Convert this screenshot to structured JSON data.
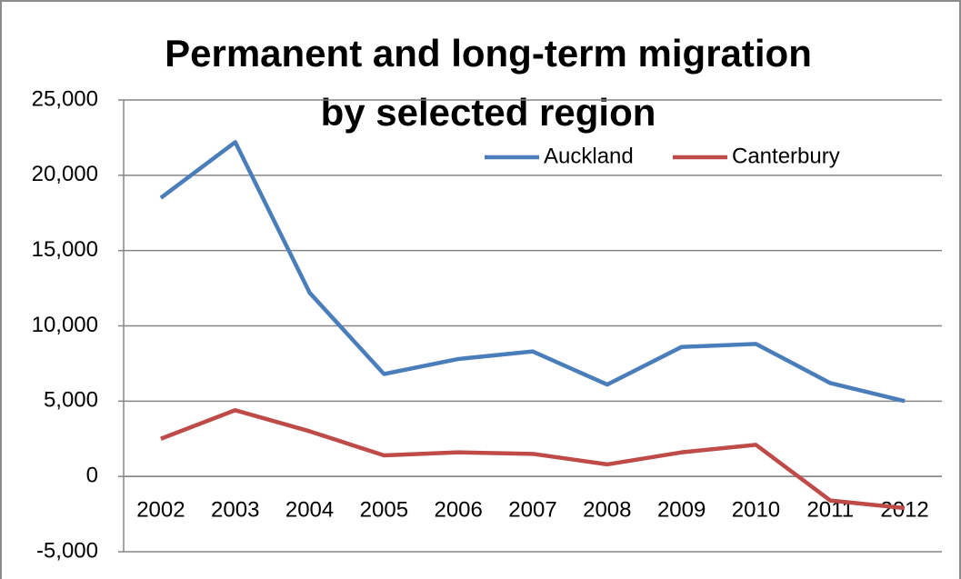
{
  "chart_data": {
    "type": "line",
    "title": [
      "Permanent and long-term migration",
      "by selected region"
    ],
    "categories": [
      "2002",
      "2003",
      "2004",
      "2005",
      "2006",
      "2007",
      "2008",
      "2009",
      "2010",
      "2011",
      "2012"
    ],
    "series": [
      {
        "name": "Auckland",
        "color": "#4a7ebb",
        "values": [
          18500,
          22200,
          12200,
          6800,
          7800,
          8300,
          6100,
          8600,
          8800,
          6200,
          5000
        ]
      },
      {
        "name": "Canterbury",
        "color": "#be4b48",
        "values": [
          2500,
          4400,
          3000,
          1400,
          1600,
          1500,
          800,
          1600,
          2100,
          -1600,
          -2100
        ]
      }
    ],
    "ylim": [
      -5000,
      25000
    ],
    "yticks": [
      {
        "value": -5000,
        "label": "-5,000"
      },
      0,
      {
        "value": 5000,
        "label": "5,000"
      },
      {
        "value": 10000,
        "label": "10,000"
      },
      {
        "value": 15000,
        "label": "15,000"
      },
      {
        "value": 20000,
        "label": "20,000"
      },
      {
        "value": 25000,
        "label": "25,000"
      }
    ],
    "grid": true
  }
}
